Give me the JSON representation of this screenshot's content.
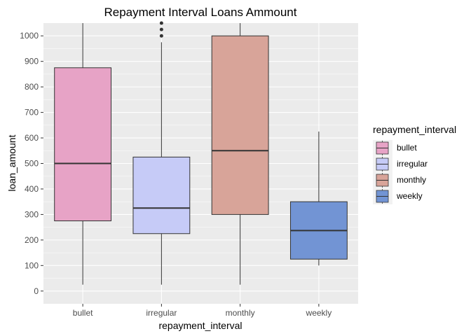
{
  "chart_data": {
    "type": "boxplot",
    "title": "Repayment Interval Loans Ammount",
    "xlabel": "repayment_interval",
    "ylabel": "loan_amount",
    "ylim": [
      -50,
      1050
    ],
    "yticks": [
      0,
      100,
      200,
      300,
      400,
      500,
      600,
      700,
      800,
      900,
      1000
    ],
    "grid": true,
    "legend": {
      "title": "repayment_interval",
      "position": "right"
    },
    "categories": [
      "bullet",
      "irregular",
      "monthly",
      "weekly"
    ],
    "boxes": [
      {
        "category": "bullet",
        "color": "#E7A3C6",
        "whisker_low": 25,
        "q1": 275,
        "median": 500,
        "q3": 875,
        "whisker_high": 1050,
        "outliers": []
      },
      {
        "category": "irregular",
        "color": "#C6CBF7",
        "whisker_low": 25,
        "q1": 225,
        "median": 325,
        "q3": 525,
        "whisker_high": 975,
        "outliers": [
          1000,
          1025,
          1050
        ]
      },
      {
        "category": "monthly",
        "color": "#D8A499",
        "whisker_low": 25,
        "q1": 300,
        "median": 550,
        "q3": 1000,
        "whisker_high": 1050,
        "outliers": []
      },
      {
        "category": "weekly",
        "color": "#7294D4",
        "whisker_low": 100,
        "q1": 125,
        "median": 237,
        "q3": 350,
        "whisker_high": 625,
        "outliers": []
      }
    ]
  }
}
